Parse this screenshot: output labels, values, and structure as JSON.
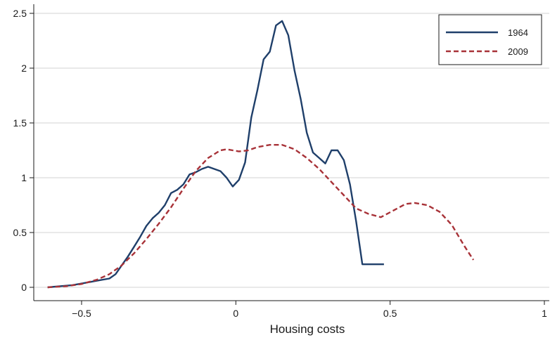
{
  "chart_data": {
    "type": "line",
    "title": "",
    "xlabel": "Housing costs",
    "ylabel": "",
    "xlim": [
      -0.62,
      1.0
    ],
    "ylim": [
      -0.07,
      2.6
    ],
    "x_ticks": [
      -0.5,
      0,
      0.5,
      1
    ],
    "x_tick_labels": [
      "−0.5",
      "0",
      "0.5",
      "1"
    ],
    "y_ticks": [
      0,
      0.5,
      1,
      1.5,
      2,
      2.5
    ],
    "y_tick_labels": [
      "0",
      "0.5",
      "1",
      "1.5",
      "2",
      "2.5"
    ],
    "grid": "horizontal",
    "legend_position": "top-right",
    "series": [
      {
        "name": "1964",
        "color": "#1f3f6a",
        "style": "solid",
        "x": [
          -0.61,
          -0.57,
          -0.53,
          -0.49,
          -0.45,
          -0.41,
          -0.39,
          -0.37,
          -0.35,
          -0.33,
          -0.31,
          -0.29,
          -0.27,
          -0.25,
          -0.23,
          -0.21,
          -0.19,
          -0.17,
          -0.15,
          -0.13,
          -0.11,
          -0.09,
          -0.07,
          -0.05,
          -0.03,
          -0.01,
          0.01,
          0.03,
          0.05,
          0.07,
          0.09,
          0.11,
          0.13,
          0.15,
          0.17,
          0.19,
          0.21,
          0.23,
          0.25,
          0.27,
          0.29,
          0.31,
          0.33,
          0.35,
          0.37,
          0.39,
          0.41,
          0.43,
          0.45,
          0.47,
          0.48
        ],
        "y": [
          0.0,
          0.01,
          0.02,
          0.04,
          0.06,
          0.08,
          0.12,
          0.2,
          0.28,
          0.37,
          0.46,
          0.56,
          0.63,
          0.68,
          0.75,
          0.86,
          0.89,
          0.94,
          1.03,
          1.05,
          1.08,
          1.1,
          1.08,
          1.06,
          1.0,
          0.92,
          0.98,
          1.14,
          1.55,
          1.8,
          2.08,
          2.15,
          2.39,
          2.43,
          2.3,
          1.98,
          1.72,
          1.41,
          1.23,
          1.18,
          1.13,
          1.25,
          1.25,
          1.16,
          0.94,
          0.6,
          0.21,
          0.21,
          0.21,
          0.21,
          0.21
        ]
      },
      {
        "name": "2009",
        "color": "#a83238",
        "style": "dashed",
        "x": [
          -0.61,
          -0.55,
          -0.5,
          -0.45,
          -0.41,
          -0.37,
          -0.33,
          -0.29,
          -0.25,
          -0.21,
          -0.17,
          -0.13,
          -0.09,
          -0.05,
          -0.03,
          -0.01,
          0.01,
          0.04,
          0.07,
          0.11,
          0.15,
          0.19,
          0.23,
          0.27,
          0.31,
          0.35,
          0.39,
          0.43,
          0.47,
          0.51,
          0.55,
          0.58,
          0.62,
          0.66,
          0.7,
          0.74,
          0.77
        ],
        "y": [
          0.0,
          0.01,
          0.03,
          0.07,
          0.12,
          0.2,
          0.31,
          0.44,
          0.58,
          0.73,
          0.9,
          1.06,
          1.18,
          1.25,
          1.26,
          1.25,
          1.24,
          1.25,
          1.28,
          1.3,
          1.3,
          1.26,
          1.18,
          1.08,
          0.96,
          0.84,
          0.72,
          0.67,
          0.64,
          0.7,
          0.76,
          0.77,
          0.75,
          0.69,
          0.57,
          0.38,
          0.25
        ]
      }
    ]
  }
}
